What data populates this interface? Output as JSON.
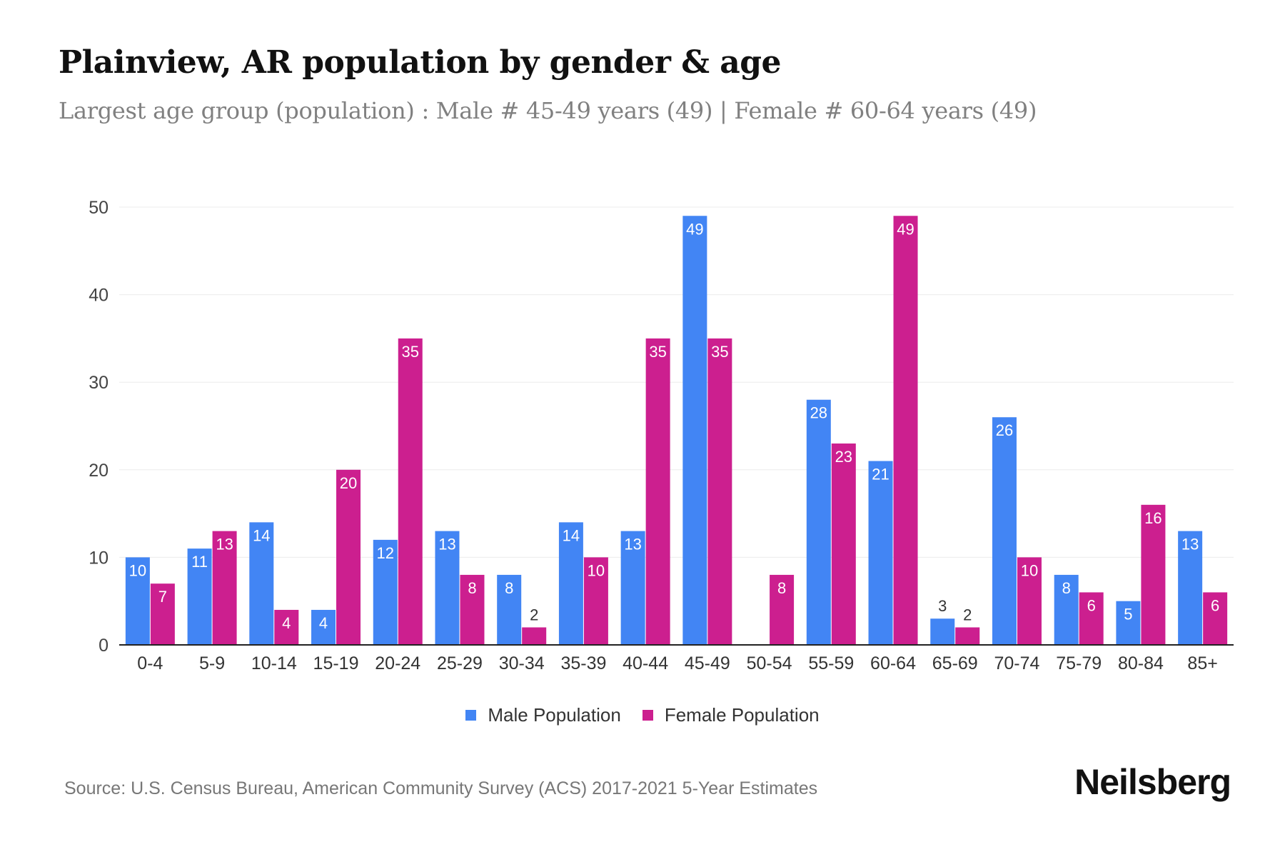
{
  "title": "Plainview, AR population by gender & age",
  "subtitle": "Largest age group (population) : Male # 45-49 years (49) | Female # 60-64 years (49)",
  "source": "Source: U.S. Census Bureau, American Community Survey (ACS) 2017-2021 5-Year Estimates",
  "logo": "Neilsberg",
  "chart_data": {
    "type": "bar",
    "categories": [
      "0-4",
      "5-9",
      "10-14",
      "15-19",
      "20-24",
      "25-29",
      "30-34",
      "35-39",
      "40-44",
      "45-49",
      "50-54",
      "55-59",
      "60-64",
      "65-69",
      "70-74",
      "75-79",
      "80-84",
      "85+"
    ],
    "series": [
      {
        "name": "Male Population",
        "color": "#4285f4",
        "values": [
          10,
          11,
          14,
          4,
          12,
          13,
          8,
          14,
          13,
          49,
          0,
          28,
          21,
          3,
          26,
          8,
          5,
          13
        ]
      },
      {
        "name": "Female Population",
        "color": "#cc1f8f",
        "values": [
          7,
          13,
          4,
          20,
          35,
          8,
          2,
          10,
          35,
          35,
          8,
          23,
          49,
          2,
          10,
          6,
          16,
          6
        ]
      }
    ],
    "yticks": [
      0,
      10,
      20,
      30,
      40,
      50
    ],
    "ylim": [
      0,
      50
    ],
    "grid": true,
    "legend": "bottom",
    "data_labels": true
  }
}
